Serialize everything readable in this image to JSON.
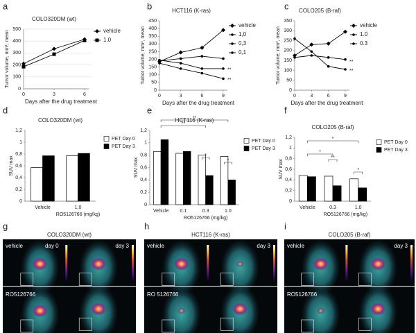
{
  "chart_data": [
    {
      "type": "line",
      "panel": "a",
      "title": "COLO320DM (wt)",
      "y_label": "Tumor volume, mm³, mean",
      "x_label": "Days after the drug treatment",
      "x": [
        0,
        3,
        6
      ],
      "xlim": [
        0,
        6
      ],
      "xticks": [
        0,
        3,
        6
      ],
      "ylim": [
        0,
        500
      ],
      "yticks": [
        0,
        100,
        200,
        300,
        400,
        500
      ],
      "grid": true,
      "series": [
        {
          "name": "vehicle",
          "color": "#000000",
          "marker": "diamond",
          "values": [
            210,
            335,
            415
          ]
        },
        {
          "name": "1.0",
          "color": "#000000",
          "marker": "square",
          "values": [
            185,
            290,
            405
          ]
        }
      ]
    },
    {
      "type": "line",
      "panel": "b",
      "title": "HCT116 (K-ras)",
      "y_label": "Tumor volume, mm³, mean",
      "x_label": "Days after the drug treatment",
      "x": [
        0,
        3,
        6,
        9
      ],
      "xlim": [
        0,
        9
      ],
      "xticks": [
        0,
        3,
        6,
        9
      ],
      "ylim": [
        0,
        450
      ],
      "yticks": [
        0,
        50,
        100,
        150,
        200,
        250,
        300,
        350,
        400,
        450
      ],
      "grid": false,
      "series": [
        {
          "name": "vehicle",
          "color": "#000000",
          "marker": "diamond",
          "values": [
            185,
            245,
            275,
            390
          ]
        },
        {
          "name": "1,0",
          "color": "#000000",
          "marker": "circle",
          "values": [
            195,
            175,
            140,
            140
          ]
        },
        {
          "name": "0,3",
          "color": "#000000",
          "marker": "circle",
          "values": [
            175,
            140,
            110,
            75
          ]
        },
        {
          "name": "0,1",
          "color": "#000000",
          "marker": "circle",
          "values": [
            190,
            205,
            220,
            205
          ]
        }
      ],
      "annotations": [
        "**",
        "**"
      ]
    },
    {
      "type": "line",
      "panel": "c",
      "title": "COLO205 (B-raf)",
      "y_label": "Tumor volume, mm³, mean",
      "x_label": "Days after the drug treatment",
      "x": [
        0,
        3,
        6,
        9
      ],
      "xlim": [
        0,
        9
      ],
      "xticks": [
        0,
        3,
        6,
        9
      ],
      "ylim": [
        0,
        350
      ],
      "yticks": [
        0,
        50,
        100,
        150,
        200,
        250,
        300,
        350
      ],
      "grid": false,
      "series": [
        {
          "name": "vehicle",
          "color": "#000000",
          "marker": "diamond",
          "values": [
            175,
            230,
            235,
            295
          ]
        },
        {
          "name": "1.0",
          "color": "#000000",
          "marker": "circle",
          "values": [
            260,
            195,
            120,
            105
          ]
        },
        {
          "name": "0.3",
          "color": "#000000",
          "marker": "circle",
          "values": [
            165,
            175,
            165,
            155
          ]
        }
      ],
      "annotations": [
        "**",
        "**"
      ]
    },
    {
      "type": "bar",
      "panel": "d",
      "title": "COLO320DM (wt)",
      "y_label": "SUV max",
      "x_label": "RO5126766 (mg/kg)",
      "categories": [
        "Vehicle",
        "1.0"
      ],
      "ylim": [
        0,
        1.2
      ],
      "yticks": [
        0,
        {
          "value": 0.2,
          "label": "0,2"
        },
        {
          "value": 0.4,
          "label": "0,4"
        },
        {
          "value": 0.6,
          "label": "0,6"
        },
        {
          "value": 0.8,
          "label": "0,8"
        },
        1,
        {
          "value": 1.2,
          "label": "1,2"
        }
      ],
      "series": [
        {
          "name": "PET Day 0",
          "color": "#ffffff",
          "values": [
            0.57,
            0.77
          ]
        },
        {
          "name": "PET Day 3",
          "color": "#000000",
          "values": [
            0.77,
            0.81
          ]
        }
      ]
    },
    {
      "type": "bar",
      "panel": "e",
      "title": "HCT116 (K-ras)",
      "y_label": "SUV max",
      "x_label": "RO5126766 (mg/kg)",
      "categories": [
        "Vehicle",
        "0.1",
        "0.3",
        "1.0"
      ],
      "ylim": [
        0,
        1.2
      ],
      "yticks": [
        0,
        {
          "value": 0.2,
          "label": "0,2"
        },
        {
          "value": 0.4,
          "label": "0,4"
        },
        {
          "value": 0.6,
          "label": "0,6"
        },
        {
          "value": 0.8,
          "label": "0,8"
        },
        1,
        {
          "value": 1.2,
          "label": "1,2"
        }
      ],
      "series": [
        {
          "name": "PET Day 0",
          "color": "#ffffff",
          "values": [
            0.86,
            0.83,
            0.8,
            0.78
          ]
        },
        {
          "name": "PET Day 3",
          "color": "#000000",
          "values": [
            1.05,
            0.86,
            0.47,
            0.4
          ]
        }
      ],
      "annotations": [
        "**",
        "**",
        "*",
        "*"
      ]
    },
    {
      "type": "bar",
      "panel": "f",
      "title": "COLO205 (B-raf)",
      "y_label": "SUV max",
      "x_label": "RO5126766 (mg/kg)",
      "categories": [
        "Vehicle",
        "0.3",
        "1.0"
      ],
      "ylim": [
        0,
        1.2
      ],
      "yticks": [
        0,
        {
          "value": 0.2,
          "label": "0,2"
        },
        {
          "value": 0.4,
          "label": "0,4"
        },
        {
          "value": 0.6,
          "label": "0,6"
        },
        {
          "value": 0.8,
          "label": "0,8"
        },
        1,
        {
          "value": 1.2,
          "label": "1,2"
        }
      ],
      "series": [
        {
          "name": "PET Day 0",
          "color": "#ffffff",
          "values": [
            0.48,
            0.47,
            0.42
          ]
        },
        {
          "name": "PET Day 3",
          "color": "#000000",
          "values": [
            0.46,
            0.29,
            0.25
          ]
        }
      ],
      "annotations": [
        "*",
        "*",
        "**",
        "*"
      ]
    }
  ],
  "image_panels": [
    {
      "panel": "g",
      "title": "COLO320DM (wt)",
      "labels": [
        "vehicle",
        "day 0",
        "day 3",
        "RO5126766"
      ]
    },
    {
      "panel": "h",
      "title": "HCT116 (K-ras)",
      "labels": [
        "vehicle",
        "day 3",
        "RO 5126766"
      ]
    },
    {
      "panel": "i",
      "title": "COLO205 (B-raf)",
      "labels": [
        "vehicle",
        "day 3",
        "RO5126766"
      ]
    }
  ]
}
